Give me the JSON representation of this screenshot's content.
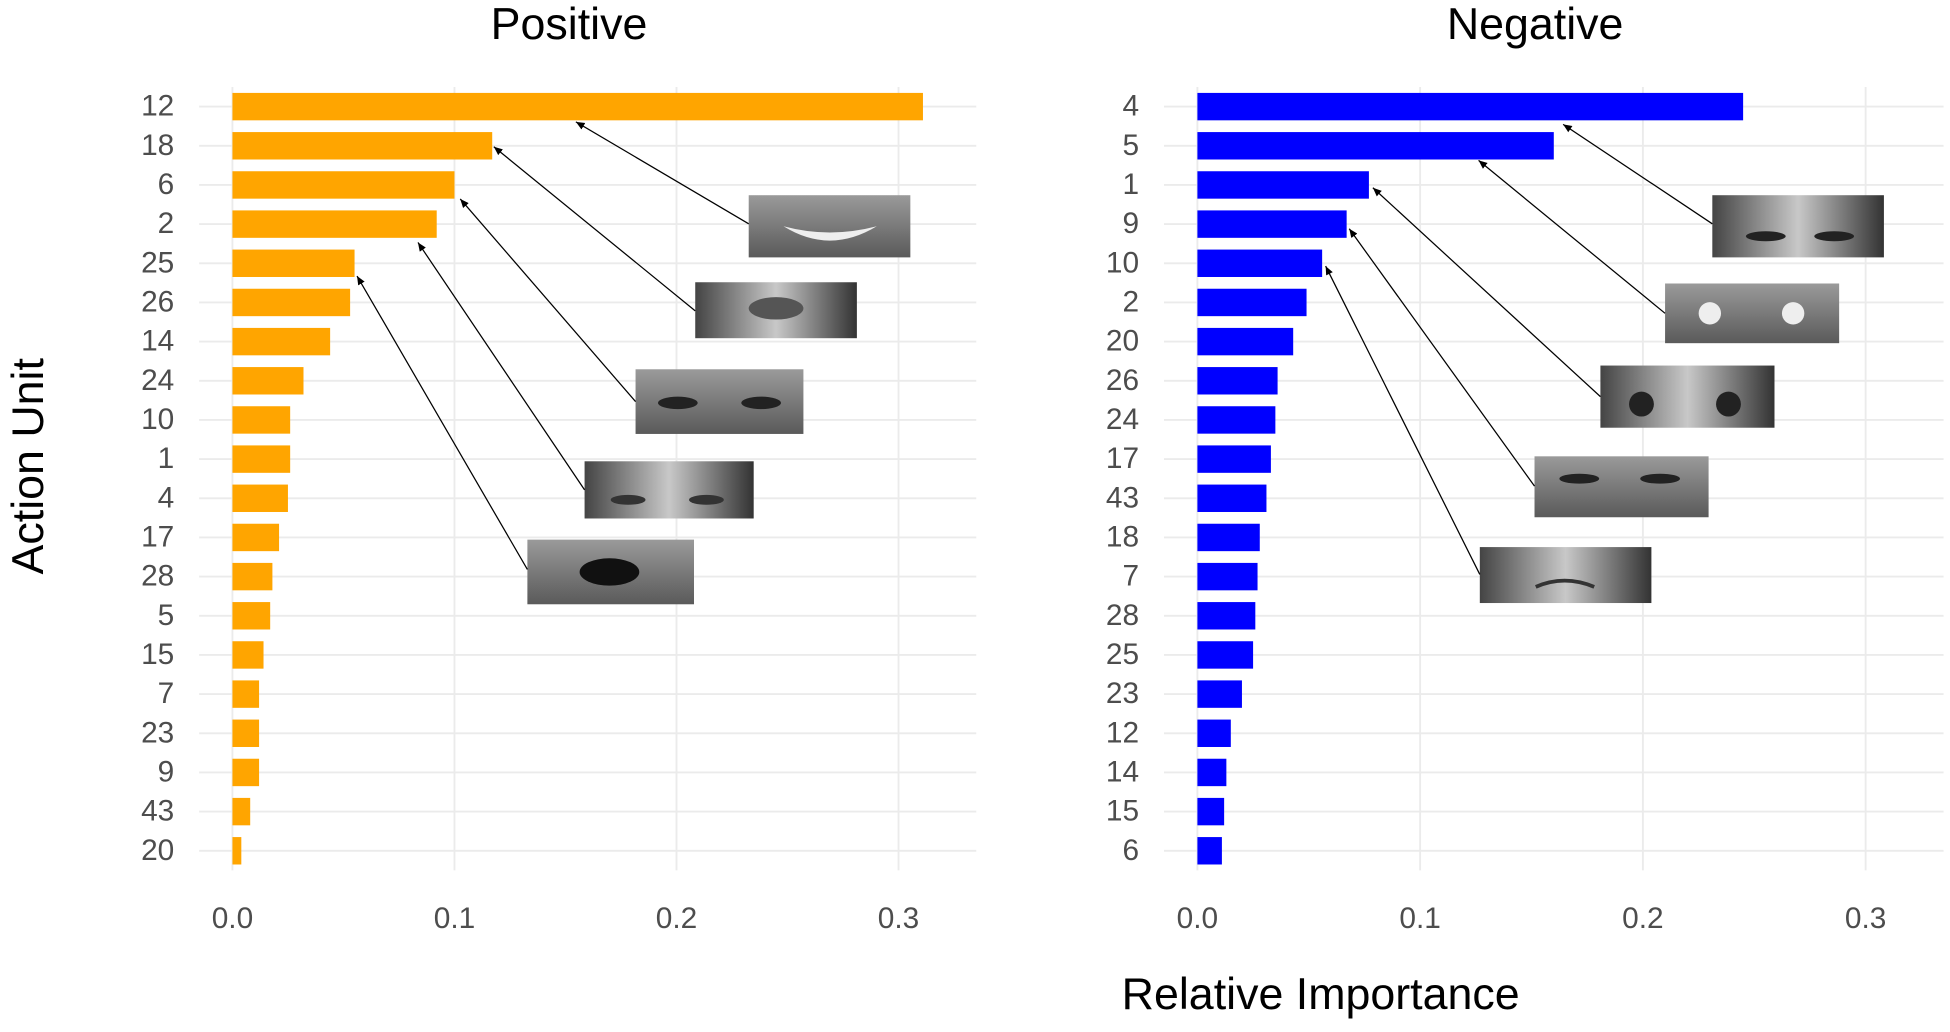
{
  "axis_titles": {
    "x": "Relative Importance",
    "y": "Action Unit"
  },
  "chart_data": [
    {
      "type": "barh",
      "title": "Positive",
      "color": "#ffa500",
      "grid": true,
      "categories": [
        "12",
        "18",
        "6",
        "2",
        "25",
        "26",
        "14",
        "24",
        "10",
        "1",
        "4",
        "17",
        "28",
        "5",
        "15",
        "7",
        "23",
        "9",
        "43",
        "20"
      ],
      "values": [
        0.311,
        0.117,
        0.1,
        0.092,
        0.055,
        0.053,
        0.044,
        0.032,
        0.026,
        0.026,
        0.025,
        0.021,
        0.018,
        0.017,
        0.014,
        0.012,
        0.012,
        0.012,
        0.008,
        0.004
      ],
      "xlim": [
        -0.015,
        0.335
      ],
      "xticks": [
        {
          "value": 0,
          "label": "0.0"
        },
        0.1,
        0.2,
        0.3
      ]
    },
    {
      "type": "barh",
      "title": "Negative",
      "color": "#0000ff",
      "grid": true,
      "categories": [
        "4",
        "5",
        "1",
        "9",
        "10",
        "2",
        "20",
        "26",
        "24",
        "17",
        "43",
        "18",
        "7",
        "28",
        "25",
        "23",
        "12",
        "14",
        "15",
        "6"
      ],
      "values": [
        0.245,
        0.16,
        0.077,
        0.067,
        0.056,
        0.049,
        0.043,
        0.036,
        0.035,
        0.033,
        0.031,
        0.028,
        0.027,
        0.026,
        0.025,
        0.02,
        0.015,
        0.013,
        0.012,
        0.011
      ],
      "xlim": [
        -0.015,
        0.335
      ],
      "xticks": [
        {
          "value": 0,
          "label": "0.0"
        },
        0.1,
        0.2,
        0.3
      ]
    }
  ]
}
